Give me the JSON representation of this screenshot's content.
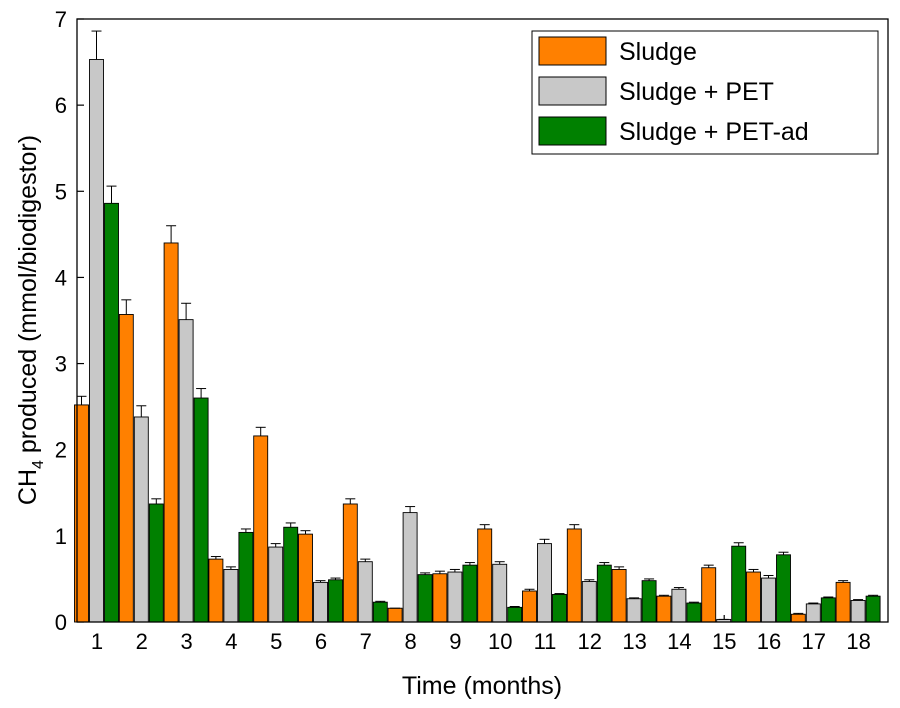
{
  "chart_data": {
    "type": "bar",
    "title": "",
    "xlabel": "Time (months)",
    "ylabel_main": "CH",
    "ylabel_sub": "4",
    "ylabel_rest": " produced (mmol/biodigestor)",
    "ylim": [
      0,
      7
    ],
    "yticks": [
      0,
      1,
      2,
      3,
      4,
      5,
      6,
      7
    ],
    "legend_position": "top-right",
    "categories": [
      "1",
      "2",
      "3",
      "4",
      "5",
      "6",
      "7",
      "8",
      "9",
      "10",
      "11",
      "12",
      "13",
      "14",
      "15",
      "16",
      "17",
      "18"
    ],
    "series": [
      {
        "name": "Sludge",
        "color": "#ff8000",
        "values": [
          2.52,
          3.57,
          4.4,
          0.73,
          2.16,
          1.02,
          1.37,
          0.16,
          0.56,
          1.08,
          0.36,
          1.08,
          0.61,
          0.3,
          0.63,
          0.58,
          0.09,
          0.46
        ],
        "errors": [
          0.1,
          0.17,
          0.2,
          0.03,
          0.1,
          0.04,
          0.06,
          0.0,
          0.03,
          0.05,
          0.02,
          0.05,
          0.03,
          0.01,
          0.03,
          0.03,
          0.01,
          0.02
        ]
      },
      {
        "name": "Sludge + PET",
        "color": "#c8c8c8",
        "values": [
          6.53,
          2.38,
          3.51,
          0.61,
          0.87,
          0.46,
          0.7,
          1.27,
          0.58,
          0.67,
          0.91,
          0.47,
          0.27,
          0.38,
          0.03,
          0.51,
          0.21,
          0.25
        ],
        "errors": [
          0.33,
          0.13,
          0.19,
          0.03,
          0.04,
          0.02,
          0.03,
          0.07,
          0.03,
          0.03,
          0.05,
          0.02,
          0.01,
          0.02,
          0.0,
          0.03,
          0.01,
          0.01
        ]
      },
      {
        "name": "Sludge + PET-ad",
        "color": "#008000",
        "values": [
          4.86,
          1.37,
          2.6,
          1.04,
          1.1,
          0.49,
          0.23,
          0.55,
          0.66,
          0.17,
          0.32,
          0.66,
          0.48,
          0.22,
          0.88,
          0.78,
          0.28,
          0.3
        ],
        "errors": [
          0.2,
          0.06,
          0.11,
          0.04,
          0.05,
          0.02,
          0.01,
          0.02,
          0.03,
          0.01,
          0.01,
          0.03,
          0.02,
          0.01,
          0.04,
          0.03,
          0.01,
          0.01
        ]
      }
    ]
  }
}
